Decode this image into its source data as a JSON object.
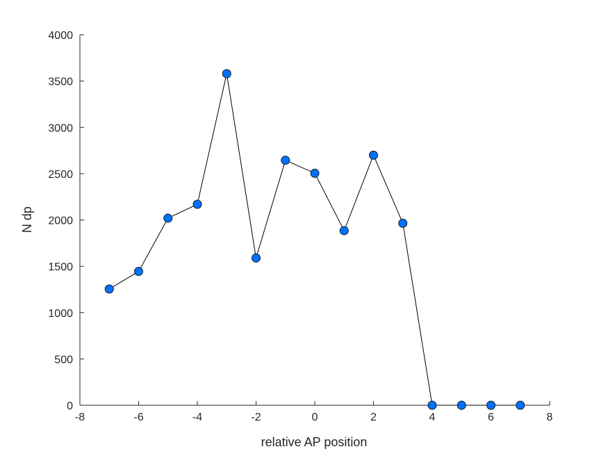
{
  "chart_data": {
    "type": "line",
    "title": "",
    "xlabel": "relative AP position",
    "ylabel": "N dp",
    "xlim": [
      -8,
      8
    ],
    "ylim": [
      0,
      4000
    ],
    "xticks": [
      -8,
      -6,
      -4,
      -2,
      0,
      2,
      4,
      6,
      8
    ],
    "xtick_labels": [
      "-8",
      "-6",
      "-4",
      "-2",
      "0",
      "2",
      "4",
      "6",
      "8"
    ],
    "yticks": [
      0,
      500,
      1000,
      1500,
      2000,
      2500,
      3000,
      3500,
      4000
    ],
    "ytick_labels": [
      "0",
      "500",
      "1000",
      "1500",
      "2000",
      "2500",
      "3000",
      "3500",
      "4000"
    ],
    "grid": false,
    "series": [
      {
        "line_color": "#000000",
        "marker_color": "#0072ff",
        "marker_edge_color": "#1a1a1a",
        "x": [
          -7,
          -6,
          -5,
          -4,
          -3,
          -2,
          -1,
          0,
          1,
          2,
          3,
          4,
          5,
          6,
          7
        ],
        "y": [
          1255,
          1445,
          2020,
          2170,
          3580,
          1590,
          2645,
          2505,
          1885,
          2700,
          1965,
          0,
          0,
          0,
          0
        ]
      }
    ]
  }
}
